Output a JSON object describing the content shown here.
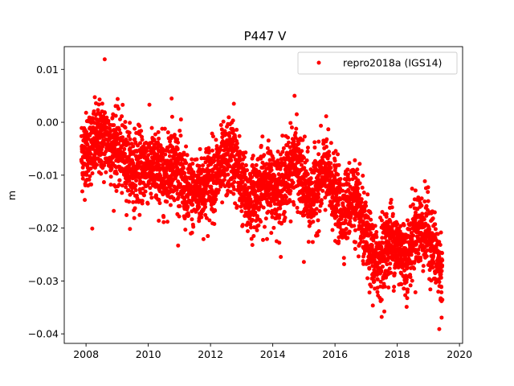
{
  "chart_data": {
    "type": "scatter",
    "title": "P447 V",
    "xlabel": "",
    "ylabel": "m",
    "xlim": [
      2007.3,
      2020.1
    ],
    "ylim": [
      -0.0418,
      0.0143
    ],
    "grid": false,
    "legend_position": "top-right",
    "x_ticks": [
      2008,
      2010,
      2012,
      2014,
      2016,
      2018,
      2020
    ],
    "x_tick_labels": [
      "2008",
      "2010",
      "2012",
      "2014",
      "2016",
      "2018",
      "2020"
    ],
    "y_ticks": [
      0.01,
      0.0,
      -0.01,
      -0.02,
      -0.03,
      -0.04
    ],
    "y_tick_labels": [
      "0.01",
      "0.00",
      "−0.01",
      "−0.02",
      "−0.03",
      "−0.04"
    ],
    "series": [
      {
        "name": "repro2018a (IGS14)",
        "color": "#ff0000",
        "marker": "circle",
        "x_range": [
          2007.85,
          2019.45
        ],
        "trend": [
          [
            2007.85,
            -0.006
          ],
          [
            2008.5,
            -0.003
          ],
          [
            2009.0,
            -0.005
          ],
          [
            2009.5,
            -0.009
          ],
          [
            2010.0,
            -0.008
          ],
          [
            2010.5,
            -0.01
          ],
          [
            2010.8,
            -0.007
          ],
          [
            2011.3,
            -0.014
          ],
          [
            2011.8,
            -0.012
          ],
          [
            2012.3,
            -0.009
          ],
          [
            2012.7,
            -0.006
          ],
          [
            2013.2,
            -0.015
          ],
          [
            2013.8,
            -0.011
          ],
          [
            2014.2,
            -0.013
          ],
          [
            2014.7,
            -0.007
          ],
          [
            2015.2,
            -0.015
          ],
          [
            2015.7,
            -0.009
          ],
          [
            2016.2,
            -0.017
          ],
          [
            2016.6,
            -0.014
          ],
          [
            2017.0,
            -0.022
          ],
          [
            2017.3,
            -0.027
          ],
          [
            2017.8,
            -0.022
          ],
          [
            2018.3,
            -0.026
          ],
          [
            2018.6,
            -0.02
          ],
          [
            2019.0,
            -0.021
          ],
          [
            2019.45,
            -0.029
          ]
        ],
        "noise_sigma": 0.0035,
        "n_points": 3900,
        "outliers": [
          [
            2008.6,
            0.0119
          ],
          [
            2014.7,
            0.005
          ],
          [
            2010.75,
            0.0045
          ],
          [
            2008.2,
            -0.0201
          ],
          [
            2017.5,
            -0.0368
          ],
          [
            2019.35,
            -0.0391
          ],
          [
            2015.0,
            -0.0264
          ],
          [
            2012.75,
            0.0035
          ]
        ]
      }
    ]
  }
}
